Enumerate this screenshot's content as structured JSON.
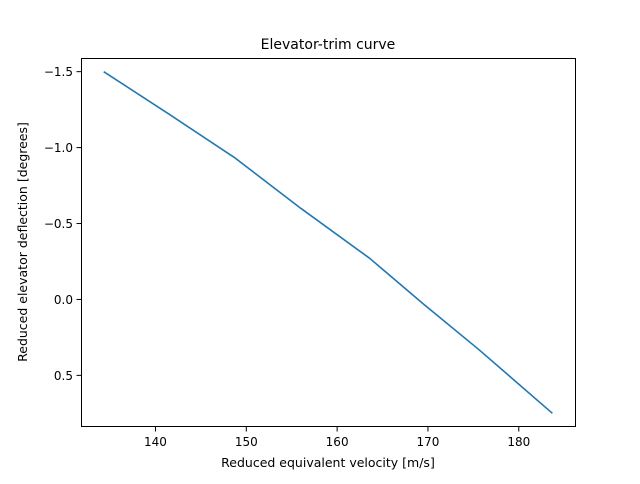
{
  "chart_data": {
    "type": "line",
    "title": "Elevator-trim curve",
    "xlabel": "Reduced equivalent velocity [m/s]",
    "ylabel": "Reduced elevator deflection [degrees]",
    "xlim": [
      131.8,
      186.3
    ],
    "ylim": [
      0.84,
      -1.59
    ],
    "y_inverted": true,
    "xticks": [
      140,
      150,
      160,
      170,
      180
    ],
    "yticks": [
      -1.5,
      -1.0,
      -0.5,
      0.0,
      0.5
    ],
    "xtick_labels": [
      "140",
      "150",
      "160",
      "170",
      "180"
    ],
    "ytick_labels": [
      "−1.5",
      "−1.0",
      "−0.5",
      "0.0",
      "0.5"
    ],
    "grid": false,
    "series": [
      {
        "color": "#1f77b4",
        "x": [
          134.3,
          141.5,
          148.8,
          156.0,
          163.6,
          169.5,
          175.6,
          183.7
        ],
        "y": [
          -1.5,
          -1.22,
          -0.93,
          -0.6,
          -0.27,
          0.03,
          0.33,
          0.75
        ]
      }
    ]
  }
}
